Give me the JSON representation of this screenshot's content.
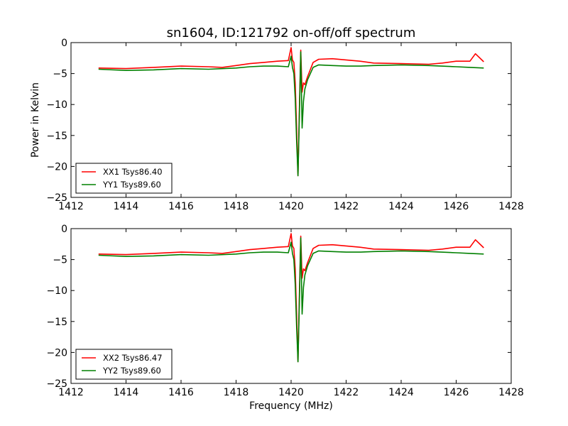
{
  "figure": {
    "title": "sn1604, ID:121792 on-off/off spectrum",
    "xlabel": "Frequency (MHz)",
    "ylabel": "Power in Kelvin"
  },
  "colors": {
    "XX": "#ff0000",
    "YY": "#008000"
  },
  "chart_data": [
    {
      "type": "line",
      "title": "sn1604, ID:121792 on-off/off spectrum",
      "xlabel": "",
      "ylabel": "Power in Kelvin",
      "xlim": [
        1412,
        1428
      ],
      "ylim": [
        -25,
        0
      ],
      "xticks": [
        "1412",
        "1414",
        "1416",
        "1418",
        "1420",
        "1422",
        "1424",
        "1426",
        "1428"
      ],
      "yticks": [
        "0",
        "−5",
        "−10",
        "−15",
        "−20",
        "−25"
      ],
      "legend": "lower-left",
      "series": [
        {
          "name": "XX1 Tsys86.40",
          "color": "#ff0000",
          "x": [
            1413.0,
            1414.0,
            1415.0,
            1416.0,
            1417.0,
            1417.5,
            1418.0,
            1418.5,
            1419.0,
            1419.5,
            1419.9,
            1420.0,
            1420.05,
            1420.1,
            1420.15,
            1420.2,
            1420.25,
            1420.3,
            1420.35,
            1420.4,
            1420.45,
            1420.5,
            1420.6,
            1420.8,
            1421.0,
            1421.5,
            1422.0,
            1422.5,
            1423.0,
            1424.0,
            1425.0,
            1425.5,
            1426.0,
            1426.5,
            1426.7,
            1427.0
          ],
          "y": [
            -4.1,
            -4.2,
            -4.0,
            -3.8,
            -3.9,
            -4.0,
            -3.7,
            -3.4,
            -3.2,
            -3.0,
            -2.9,
            -0.8,
            -2.8,
            -3.2,
            -6.5,
            -14.0,
            -21.5,
            -11.0,
            -1.2,
            -8.0,
            -6.5,
            -6.8,
            -5.5,
            -3.2,
            -2.7,
            -2.6,
            -2.8,
            -3.0,
            -3.3,
            -3.4,
            -3.5,
            -3.3,
            -3.0,
            -3.0,
            -1.8,
            -3.1
          ]
        },
        {
          "name": "YY1 Tsys89.60",
          "color": "#008000",
          "x": [
            1413.0,
            1414.0,
            1415.0,
            1416.0,
            1417.0,
            1418.0,
            1418.5,
            1419.0,
            1419.5,
            1419.9,
            1420.0,
            1420.05,
            1420.1,
            1420.15,
            1420.2,
            1420.25,
            1420.3,
            1420.35,
            1420.4,
            1420.45,
            1420.5,
            1420.6,
            1420.8,
            1421.0,
            1421.5,
            1422.0,
            1422.5,
            1423.0,
            1424.0,
            1425.0,
            1426.0,
            1426.5,
            1427.0
          ],
          "y": [
            -4.3,
            -4.5,
            -4.4,
            -4.2,
            -4.3,
            -4.1,
            -3.9,
            -3.8,
            -3.8,
            -3.9,
            -2.2,
            -4.0,
            -5.0,
            -9.0,
            -16.0,
            -21.5,
            -12.0,
            -1.5,
            -13.8,
            -9.5,
            -7.5,
            -6.0,
            -4.0,
            -3.6,
            -3.7,
            -3.8,
            -3.8,
            -3.7,
            -3.6,
            -3.7,
            -3.9,
            -4.0,
            -4.1
          ]
        }
      ]
    },
    {
      "type": "line",
      "title": "",
      "xlabel": "Frequency (MHz)",
      "ylabel": "",
      "xlim": [
        1412,
        1428
      ],
      "ylim": [
        -25,
        0
      ],
      "xticks": [
        "1412",
        "1414",
        "1416",
        "1418",
        "1420",
        "1422",
        "1424",
        "1426",
        "1428"
      ],
      "yticks": [
        "0",
        "−5",
        "−10",
        "−15",
        "−20",
        "−25"
      ],
      "legend": "lower-left",
      "series": [
        {
          "name": "XX2 Tsys86.47",
          "color": "#ff0000",
          "x": [
            1413.0,
            1414.0,
            1415.0,
            1416.0,
            1417.0,
            1417.5,
            1418.0,
            1418.5,
            1419.0,
            1419.5,
            1419.9,
            1420.0,
            1420.05,
            1420.1,
            1420.15,
            1420.2,
            1420.25,
            1420.3,
            1420.35,
            1420.4,
            1420.45,
            1420.5,
            1420.6,
            1420.8,
            1421.0,
            1421.5,
            1422.0,
            1422.5,
            1423.0,
            1424.0,
            1425.0,
            1425.5,
            1426.0,
            1426.5,
            1426.7,
            1427.0
          ],
          "y": [
            -4.1,
            -4.2,
            -4.0,
            -3.8,
            -3.9,
            -4.0,
            -3.7,
            -3.4,
            -3.2,
            -3.0,
            -2.9,
            -0.8,
            -2.8,
            -3.2,
            -6.5,
            -14.0,
            -21.5,
            -11.0,
            -1.2,
            -8.0,
            -6.5,
            -6.8,
            -5.5,
            -3.2,
            -2.7,
            -2.6,
            -2.8,
            -3.0,
            -3.3,
            -3.4,
            -3.5,
            -3.3,
            -3.0,
            -3.0,
            -1.8,
            -3.1
          ]
        },
        {
          "name": "YY2 Tsys89.60",
          "color": "#008000",
          "x": [
            1413.0,
            1414.0,
            1415.0,
            1416.0,
            1417.0,
            1418.0,
            1418.5,
            1419.0,
            1419.5,
            1419.9,
            1420.0,
            1420.05,
            1420.1,
            1420.15,
            1420.2,
            1420.25,
            1420.3,
            1420.35,
            1420.4,
            1420.45,
            1420.5,
            1420.6,
            1420.8,
            1421.0,
            1421.5,
            1422.0,
            1422.5,
            1423.0,
            1424.0,
            1425.0,
            1426.0,
            1426.5,
            1427.0
          ],
          "y": [
            -4.3,
            -4.5,
            -4.4,
            -4.2,
            -4.3,
            -4.1,
            -3.9,
            -3.8,
            -3.8,
            -3.9,
            -2.2,
            -4.0,
            -5.0,
            -9.0,
            -16.0,
            -21.5,
            -12.0,
            -1.5,
            -13.8,
            -9.5,
            -7.5,
            -6.0,
            -4.0,
            -3.6,
            -3.7,
            -3.8,
            -3.8,
            -3.7,
            -3.6,
            -3.7,
            -3.9,
            -4.0,
            -4.1
          ]
        }
      ]
    }
  ]
}
